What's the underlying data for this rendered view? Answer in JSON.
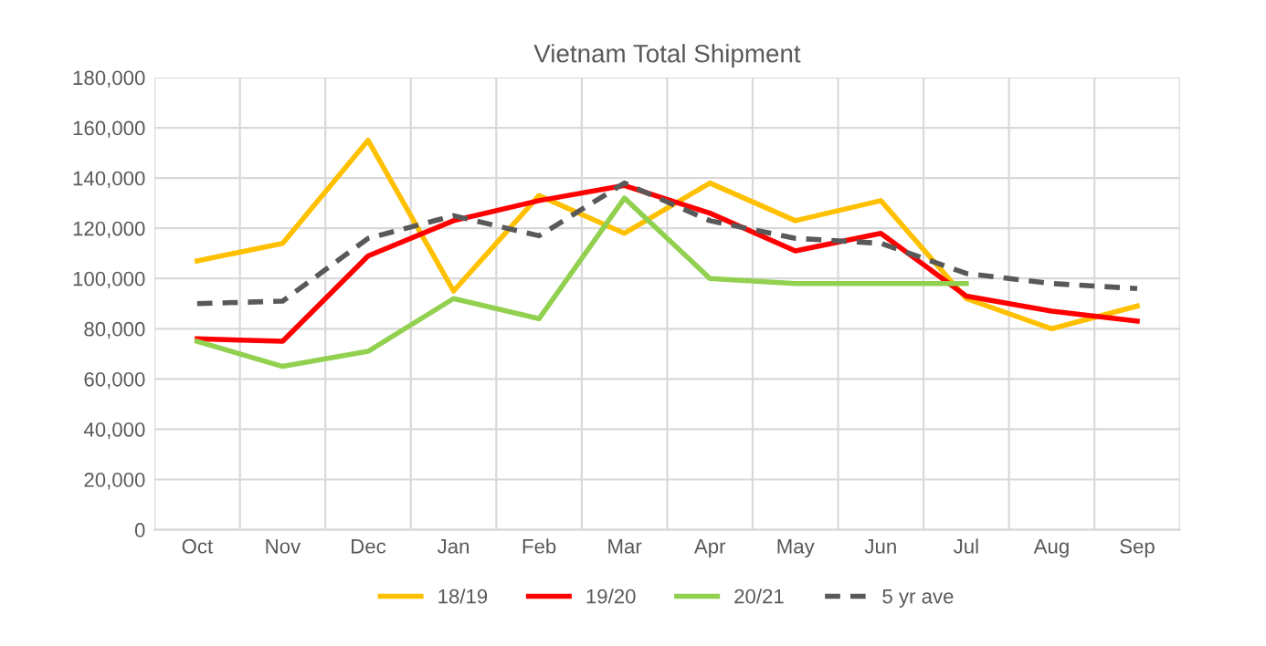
{
  "chart_data": {
    "type": "line",
    "title": "Vietnam Total Shipment",
    "categories": [
      "Oct",
      "Nov",
      "Dec",
      "Jan",
      "Feb",
      "Mar",
      "Apr",
      "May",
      "Jun",
      "Jul",
      "Aug",
      "Sep"
    ],
    "series": [
      {
        "name": "18/19",
        "color": "#ffc000",
        "values": [
          107000,
          114000,
          155000,
          95000,
          133000,
          118000,
          138000,
          123000,
          131000,
          92000,
          80000,
          89000
        ]
      },
      {
        "name": "19/20",
        "color": "#ff0000",
        "values": [
          76000,
          75000,
          109000,
          123000,
          131000,
          137000,
          126000,
          111000,
          118000,
          93000,
          87000,
          83000
        ]
      },
      {
        "name": "20/21",
        "color": "#92d050",
        "values": [
          75000,
          65000,
          71000,
          92000,
          84000,
          132000,
          100000,
          98000,
          98000,
          98000,
          null,
          null
        ]
      },
      {
        "name": "5 yr ave",
        "color": "#595959",
        "line_style": "dashed",
        "values": [
          90000,
          91000,
          116000,
          125000,
          117000,
          138000,
          123000,
          116000,
          114000,
          102000,
          98000,
          96000
        ]
      }
    ],
    "ylim": [
      0,
      180000
    ],
    "yticks": [
      {
        "value": 0,
        "label": "0"
      },
      {
        "value": 20000,
        "label": "20,000"
      },
      {
        "value": 40000,
        "label": "40,000"
      },
      {
        "value": 60000,
        "label": "60,000"
      },
      {
        "value": 80000,
        "label": "80,000"
      },
      {
        "value": 100000,
        "label": "100,000"
      },
      {
        "value": 120000,
        "label": "120,000"
      },
      {
        "value": 140000,
        "label": "140,000"
      },
      {
        "value": 160000,
        "label": "160,000"
      },
      {
        "value": 180000,
        "label": "180,000"
      }
    ],
    "grid": true,
    "legend": "bottom"
  }
}
